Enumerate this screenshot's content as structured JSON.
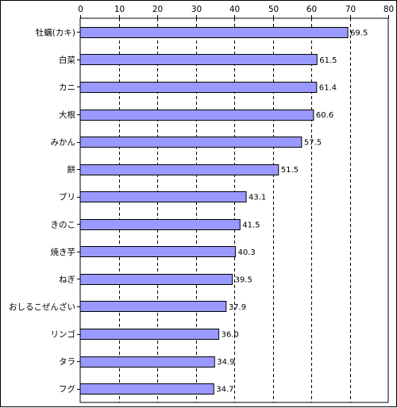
{
  "chart_data": {
    "type": "bar",
    "orientation": "horizontal",
    "categories": [
      "牡蠣(カキ)",
      "白菜",
      "カニ",
      "大根",
      "みかん",
      "餅",
      "ブリ",
      "きのこ",
      "焼き芋",
      "ねぎ",
      "おしるこぜんざい",
      "リンゴ",
      "タラ",
      "フグ"
    ],
    "values": [
      69.5,
      61.5,
      61.4,
      60.6,
      57.5,
      51.5,
      43.1,
      41.5,
      40.3,
      39.5,
      37.9,
      36.0,
      34.9,
      34.7
    ],
    "value_labels": [
      "69.5",
      "61.5",
      "61.4",
      "60.6",
      "57.5",
      "51.5",
      "43.1",
      "41.5",
      "40.3",
      "39.5",
      "37.9",
      "36.0",
      "34.9",
      "34.7"
    ],
    "x_ticks": [
      "0",
      "10",
      "20",
      "30",
      "40",
      "50",
      "60",
      "70",
      "80"
    ],
    "xlim": [
      0,
      80
    ],
    "title": "",
    "xlabel": "",
    "ylabel": "",
    "grid": "vertical dashed",
    "x_axis_position": "top",
    "bar_color": "#9999ff",
    "bar_edge_color": "#000000"
  }
}
